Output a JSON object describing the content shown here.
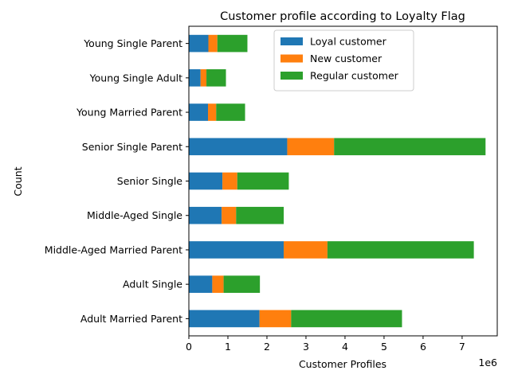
{
  "chart_data": {
    "type": "bar",
    "orientation": "horizontal",
    "stacked": true,
    "title": "Customer profile according to Loyalty Flag",
    "xlabel": "Customer Profiles",
    "ylabel": "Count",
    "x_offset_label": "1e6",
    "xlim": [
      0,
      7.9
    ],
    "x_ticks": [
      0,
      1,
      2,
      3,
      4,
      5,
      6,
      7
    ],
    "grid": false,
    "legend_position": "top-center",
    "categories": [
      "Adult Married Parent",
      "Adult Single",
      "Middle-Aged Married Parent",
      "Middle-Aged Single",
      "Senior Single",
      "Senior Single Parent",
      "Young Married Parent",
      "Young Single Adult",
      "Young Single Parent"
    ],
    "series": [
      {
        "name": "Loyal customer",
        "color": "#1f77b4",
        "values": [
          1.81,
          0.6,
          2.43,
          0.84,
          0.86,
          2.52,
          0.49,
          0.3,
          0.5
        ]
      },
      {
        "name": "New customer",
        "color": "#ff7f0e",
        "values": [
          0.81,
          0.29,
          1.12,
          0.37,
          0.38,
          1.2,
          0.21,
          0.15,
          0.23
        ]
      },
      {
        "name": "Regular customer",
        "color": "#2ca02c",
        "values": [
          2.84,
          0.93,
          3.75,
          1.22,
          1.32,
          3.88,
          0.74,
          0.5,
          0.77
        ]
      }
    ]
  }
}
